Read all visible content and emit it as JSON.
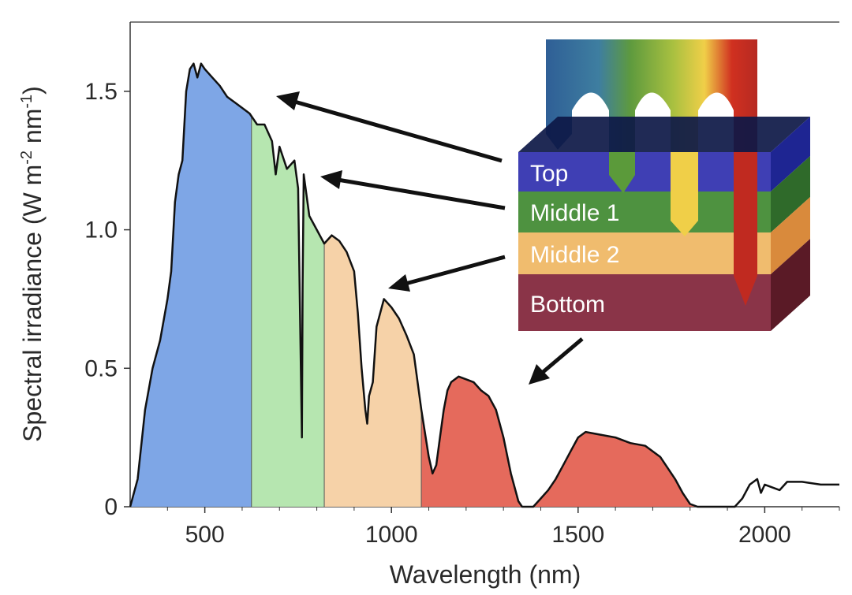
{
  "chart_data": {
    "type": "area",
    "title": "",
    "xlabel": "Wavelength (nm)",
    "ylabel_main": "Spectral irradiance (W m",
    "ylabel_exp1": "-2",
    "ylabel_mid": " nm",
    "ylabel_exp2": "-1",
    "ylabel_end": ")",
    "xlim": [
      300,
      2200
    ],
    "ylim": [
      0,
      1.75
    ],
    "x_ticks": [
      500,
      1000,
      1500,
      2000
    ],
    "x_tick_labels": [
      "500",
      "1000",
      "1500",
      "2000"
    ],
    "y_ticks": [
      0,
      0.5,
      1.0,
      1.5
    ],
    "y_tick_labels": [
      "0",
      "0.5",
      "1.0",
      "1.5"
    ],
    "spectrum": {
      "x": [
        300,
        320,
        340,
        360,
        380,
        400,
        410,
        420,
        430,
        440,
        450,
        460,
        470,
        480,
        490,
        500,
        520,
        540,
        560,
        580,
        600,
        620,
        640,
        660,
        680,
        690,
        700,
        720,
        740,
        750,
        760,
        762,
        765,
        780,
        800,
        820,
        840,
        860,
        880,
        900,
        910,
        920,
        930,
        935,
        940,
        950,
        960,
        980,
        1000,
        1020,
        1040,
        1060,
        1080,
        1100,
        1110,
        1120,
        1130,
        1140,
        1150,
        1160,
        1180,
        1200,
        1220,
        1240,
        1260,
        1280,
        1300,
        1320,
        1340,
        1350,
        1360,
        1380,
        1400,
        1420,
        1440,
        1460,
        1480,
        1500,
        1520,
        1560,
        1600,
        1640,
        1680,
        1720,
        1760,
        1780,
        1800,
        1820,
        1840,
        1860,
        1880,
        1900,
        1920,
        1940,
        1960,
        1980,
        1990,
        2000,
        2020,
        2040,
        2060,
        2100,
        2150,
        2200
      ],
      "y": [
        0.0,
        0.1,
        0.35,
        0.5,
        0.6,
        0.75,
        0.85,
        1.1,
        1.2,
        1.25,
        1.5,
        1.58,
        1.6,
        1.55,
        1.6,
        1.58,
        1.55,
        1.52,
        1.48,
        1.46,
        1.44,
        1.42,
        1.38,
        1.38,
        1.32,
        1.2,
        1.3,
        1.22,
        1.25,
        1.15,
        0.25,
        0.8,
        1.2,
        1.05,
        1.0,
        0.95,
        0.98,
        0.96,
        0.92,
        0.85,
        0.7,
        0.5,
        0.35,
        0.3,
        0.4,
        0.45,
        0.65,
        0.75,
        0.72,
        0.68,
        0.62,
        0.55,
        0.35,
        0.18,
        0.12,
        0.15,
        0.25,
        0.35,
        0.42,
        0.45,
        0.47,
        0.46,
        0.45,
        0.42,
        0.4,
        0.35,
        0.25,
        0.12,
        0.02,
        0.0,
        0.0,
        0.0,
        0.03,
        0.06,
        0.1,
        0.15,
        0.2,
        0.25,
        0.27,
        0.26,
        0.25,
        0.23,
        0.22,
        0.18,
        0.1,
        0.05,
        0.01,
        0.0,
        0.0,
        0.0,
        0.0,
        0.0,
        0.0,
        0.03,
        0.08,
        0.1,
        0.05,
        0.08,
        0.07,
        0.06,
        0.09,
        0.09,
        0.08,
        0.08
      ]
    },
    "bands": [
      {
        "name": "Top",
        "from": 300,
        "to": 625,
        "color": "#7ea6e6"
      },
      {
        "name": "Middle 1",
        "from": 625,
        "to": 820,
        "color": "#b6e6b0"
      },
      {
        "name": "Middle 2",
        "from": 820,
        "to": 1080,
        "color": "#f6d2a8"
      },
      {
        "name": "Bottom",
        "from": 1080,
        "to": 1820,
        "color": "#e56a5c"
      }
    ],
    "layers": [
      {
        "name": "Top",
        "label": "Top",
        "color": "#3f3fb4"
      },
      {
        "name": "Middle 1",
        "label": "Middle 1",
        "color": "#4e9240"
      },
      {
        "name": "Middle 2",
        "label": "Middle 2",
        "color": "#f0bc6e"
      },
      {
        "name": "Bottom",
        "label": "Bottom",
        "color": "#8a3448"
      }
    ],
    "annotations": [
      {
        "text": "arrow",
        "from_layer": "Top",
        "to_x": 680,
        "to_y": 1.52
      },
      {
        "text": "arrow",
        "from_layer": "Middle 1",
        "to_x": 790,
        "to_y": 1.22
      },
      {
        "text": "arrow",
        "from_layer": "Middle 2",
        "to_x": 1000,
        "to_y": 0.82
      },
      {
        "text": "arrow",
        "from_layer": "Bottom",
        "to_x": 1370,
        "to_y": 0.45
      }
    ]
  }
}
